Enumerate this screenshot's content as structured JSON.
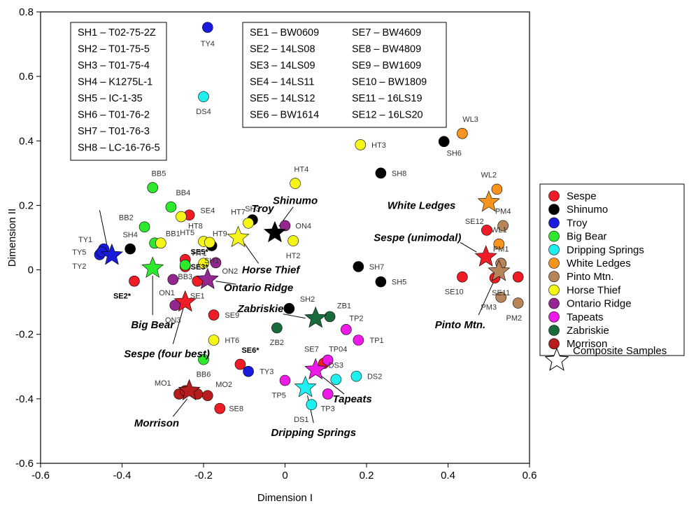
{
  "chart_data": {
    "type": "scatter",
    "xlabel": "Dimension I",
    "ylabel": "Dimension II",
    "xlim": [
      -0.6,
      0.6
    ],
    "ylim": [
      -0.6,
      0.8
    ],
    "xticks": [
      -0.6,
      -0.4,
      -0.2,
      0,
      0.2,
      0.4,
      0.6
    ],
    "yticks": [
      -0.6,
      -0.4,
      -0.2,
      0,
      0.2,
      0.4,
      0.6,
      0.8
    ],
    "xtick_labels": [
      "-0.6",
      "-0.4",
      "-0.2",
      "0",
      "0.2",
      "0.4",
      "0.6"
    ],
    "ytick_labels": [
      "-0.6",
      "-0.4",
      "-0.2",
      "0",
      "0.2",
      "0.4",
      "0.6",
      "0.8"
    ],
    "grid": false,
    "legend_position": "right",
    "series": [
      {
        "name": "Sespe",
        "color": "#ee1c24",
        "points": [
          {
            "label": "SE1",
            "x": -0.215,
            "y": -0.035,
            "lx": 0.0,
            "ly": -0.045
          },
          {
            "label": "SE2*",
            "x": -0.37,
            "y": -0.035,
            "lx": -0.03,
            "ly": -0.045,
            "bold": true
          },
          {
            "label": "SE3*",
            "x": -0.245,
            "y": 0.01,
            "lx": 0.035,
            "ly": 0.0,
            "bold": true
          },
          {
            "label": "SE4",
            "x": -0.235,
            "y": 0.17,
            "lx": 0.045,
            "ly": 0.015
          },
          {
            "label": "SE5*",
            "x": -0.245,
            "y": 0.032,
            "lx": 0.035,
            "ly": 0.025,
            "bold": true
          },
          {
            "label": "SE6*",
            "x": -0.11,
            "y": -0.293,
            "lx": 0.025,
            "ly": 0.045,
            "bold": true
          },
          {
            "label": "SE7",
            "x": 0.095,
            "y": -0.29,
            "lx": -0.03,
            "ly": 0.045
          },
          {
            "label": "SE8",
            "x": -0.16,
            "y": -0.43,
            "lx": 0.04,
            "ly": 0.0
          },
          {
            "label": "SE9",
            "x": -0.175,
            "y": -0.14,
            "lx": 0.045,
            "ly": 0.0
          },
          {
            "label": "SE10",
            "x": 0.435,
            "y": -0.022,
            "lx": -0.02,
            "ly": -0.045
          },
          {
            "label": "SE11",
            "x": 0.515,
            "y": -0.025,
            "lx": 0.015,
            "ly": -0.045
          },
          {
            "label": "SE12",
            "x": 0.495,
            "y": 0.123,
            "lx": -0.03,
            "ly": 0.028
          },
          {
            "label": "",
            "x": 0.572,
            "y": -0.022,
            "lx": 0,
            "ly": 0
          }
        ]
      },
      {
        "name": "Shinumo",
        "color": "#000000",
        "points": [
          {
            "label": "SH1",
            "x": -0.18,
            "y": 0.075,
            "lx": 0.0,
            "ly": -0.045
          },
          {
            "label": "SH2",
            "x": 0.01,
            "y": -0.12,
            "lx": 0.045,
            "ly": 0.03
          },
          {
            "label": "SH3",
            "x": -0.08,
            "y": 0.155,
            "lx": 0.0,
            "ly": 0.035
          },
          {
            "label": "SH4",
            "x": -0.38,
            "y": 0.065,
            "lx": 0.0,
            "ly": 0.045
          },
          {
            "label": "SH5",
            "x": 0.235,
            "y": -0.037,
            "lx": 0.045,
            "ly": 0.0
          },
          {
            "label": "SH6",
            "x": 0.39,
            "y": 0.398,
            "lx": 0.025,
            "ly": -0.035
          },
          {
            "label": "SH7",
            "x": 0.18,
            "y": 0.01,
            "lx": 0.045,
            "ly": 0.0
          },
          {
            "label": "SH8",
            "x": 0.235,
            "y": 0.3,
            "lx": 0.045,
            "ly": 0.0
          }
        ]
      },
      {
        "name": "Troy",
        "color": "#1a1adc",
        "points": [
          {
            "label": "TY1",
            "x": -0.445,
            "y": 0.065,
            "lx": -0.045,
            "ly": 0.03
          },
          {
            "label": "TY2",
            "x": -0.455,
            "y": 0.047,
            "lx": -0.05,
            "ly": -0.035
          },
          {
            "label": "TY3",
            "x": -0.09,
            "y": -0.315,
            "lx": 0.045,
            "ly": 0.0
          },
          {
            "label": "TY4",
            "x": -0.19,
            "y": 0.752,
            "lx": 0.0,
            "ly": -0.05
          },
          {
            "label": "TY5",
            "x": -0.45,
            "y": 0.055,
            "lx": -0.055,
            "ly": 0.0
          }
        ]
      },
      {
        "name": "Big Bear",
        "color": "#2ee82e",
        "points": [
          {
            "label": "BB1",
            "x": -0.32,
            "y": 0.083,
            "lx": 0.045,
            "ly": 0.03
          },
          {
            "label": "BB2",
            "x": -0.345,
            "y": 0.133,
            "lx": -0.045,
            "ly": 0.03
          },
          {
            "label": "BB3",
            "x": -0.245,
            "y": 0.015,
            "lx": 0.0,
            "ly": -0.035
          },
          {
            "label": "BB4",
            "x": -0.28,
            "y": 0.195,
            "lx": 0.03,
            "ly": 0.045
          },
          {
            "label": "BB5",
            "x": -0.325,
            "y": 0.255,
            "lx": 0.015,
            "ly": 0.045
          },
          {
            "label": "BB6",
            "x": -0.2,
            "y": -0.278,
            "lx": 0.0,
            "ly": -0.045
          }
        ]
      },
      {
        "name": "Dripping Springs",
        "color": "#1ef0f0",
        "points": [
          {
            "label": "DS1",
            "x": 0.065,
            "y": -0.418,
            "lx": -0.025,
            "ly": -0.045
          },
          {
            "label": "DS2",
            "x": 0.175,
            "y": -0.33,
            "lx": 0.045,
            "ly": 0.0
          },
          {
            "label": "DS3",
            "x": 0.125,
            "y": -0.34,
            "lx": 0.0,
            "ly": 0.045
          },
          {
            "label": "DS4",
            "x": -0.2,
            "y": 0.537,
            "lx": 0.0,
            "ly": -0.045
          }
        ]
      },
      {
        "name": "White Ledges",
        "color": "#f7941d",
        "points": [
          {
            "label": "WL1",
            "x": 0.525,
            "y": 0.08,
            "lx": 0.0,
            "ly": 0.045
          },
          {
            "label": "WL2",
            "x": 0.52,
            "y": 0.25,
            "lx": -0.02,
            "ly": 0.045
          },
          {
            "label": "WL3",
            "x": 0.435,
            "y": 0.423,
            "lx": 0.02,
            "ly": 0.045
          },
          {
            "label": "",
            "x": 0.53,
            "y": 0.02,
            "lx": 0,
            "ly": 0
          }
        ]
      },
      {
        "name": "Pinto Mtn.",
        "color": "#b8855a",
        "points": [
          {
            "label": "PM1",
            "x": 0.53,
            "y": 0.02,
            "lx": 0.0,
            "ly": 0.045
          },
          {
            "label": "PM2",
            "x": 0.572,
            "y": -0.103,
            "lx": -0.01,
            "ly": -0.045
          },
          {
            "label": "PM3",
            "x": 0.53,
            "y": -0.085,
            "lx": -0.03,
            "ly": -0.03
          },
          {
            "label": "PM4",
            "x": 0.535,
            "y": 0.137,
            "lx": 0.0,
            "ly": 0.045
          }
        ]
      },
      {
        "name": "Horse Thief",
        "color": "#f5f51a",
        "points": [
          {
            "label": "HT1",
            "x": -0.2,
            "y": 0.02,
            "lx": -0.01,
            "ly": 0.032
          },
          {
            "label": "HT2",
            "x": 0.02,
            "y": 0.09,
            "lx": 0.0,
            "ly": -0.045
          },
          {
            "label": "HT3",
            "x": 0.185,
            "y": 0.388,
            "lx": 0.045,
            "ly": 0.0
          },
          {
            "label": "HT4",
            "x": 0.025,
            "y": 0.268,
            "lx": 0.015,
            "ly": 0.045
          },
          {
            "label": "HT5",
            "x": -0.2,
            "y": 0.088,
            "lx": -0.04,
            "ly": 0.028
          },
          {
            "label": "HT6",
            "x": -0.175,
            "y": -0.218,
            "lx": 0.045,
            "ly": 0.0
          },
          {
            "label": "HT7",
            "x": -0.09,
            "y": 0.145,
            "lx": -0.025,
            "ly": 0.035
          },
          {
            "label": "HT8",
            "x": -0.255,
            "y": 0.165,
            "lx": 0.035,
            "ly": -0.028
          },
          {
            "label": "HT9",
            "x": -0.185,
            "y": 0.085,
            "lx": 0.025,
            "ly": 0.028
          },
          {
            "label": "",
            "x": -0.305,
            "y": 0.083,
            "lx": 0,
            "ly": 0
          }
        ]
      },
      {
        "name": "Ontario Ridge",
        "color": "#93278f",
        "points": [
          {
            "label": "ON1",
            "x": -0.275,
            "y": -0.03,
            "lx": -0.015,
            "ly": -0.04
          },
          {
            "label": "ON2",
            "x": -0.17,
            "y": 0.022,
            "lx": 0.035,
            "ly": -0.025
          },
          {
            "label": "ON3",
            "x": -0.27,
            "y": -0.11,
            "lx": -0.005,
            "ly": -0.045
          },
          {
            "label": "ON4",
            "x": 0.0,
            "y": 0.137,
            "lx": 0.045,
            "ly": 0.0
          }
        ]
      },
      {
        "name": "Tapeats",
        "color": "#ee1ae8",
        "points": [
          {
            "label": "TP04",
            "x": 0.105,
            "y": -0.28,
            "lx": 0.025,
            "ly": 0.035
          },
          {
            "label": "TP1",
            "x": 0.18,
            "y": -0.218,
            "lx": 0.045,
            "ly": 0.0
          },
          {
            "label": "TP2",
            "x": 0.15,
            "y": -0.185,
            "lx": 0.025,
            "ly": 0.035
          },
          {
            "label": "TP3",
            "x": 0.105,
            "y": -0.385,
            "lx": 0.0,
            "ly": -0.045
          },
          {
            "label": "TP5",
            "x": 0.0,
            "y": -0.343,
            "lx": -0.015,
            "ly": -0.045
          }
        ]
      },
      {
        "name": "Zabriskie",
        "color": "#1a6b3c",
        "points": [
          {
            "label": "ZB1",
            "x": 0.11,
            "y": -0.145,
            "lx": 0.035,
            "ly": 0.035
          },
          {
            "label": "ZB2",
            "x": -0.02,
            "y": -0.18,
            "lx": 0.0,
            "ly": -0.045
          }
        ]
      },
      {
        "name": "Morrison",
        "color": "#b81d1d",
        "points": [
          {
            "label": "MO1",
            "x": -0.26,
            "y": -0.385,
            "lx": -0.04,
            "ly": 0.035
          },
          {
            "label": "MO2",
            "x": -0.19,
            "y": -0.39,
            "lx": 0.04,
            "ly": 0.035
          },
          {
            "label": "",
            "x": -0.215,
            "y": -0.385,
            "lx": 0,
            "ly": 0
          },
          {
            "label": "",
            "x": -0.245,
            "y": -0.375,
            "lx": 0,
            "ly": 0
          }
        ]
      }
    ],
    "composites": [
      {
        "name": "Troy",
        "color": "#1a1adc",
        "x": -0.425,
        "y": 0.045,
        "lx": -0.055,
        "ly": 0.19,
        "ax1": -0.435,
        "ay1": 0.063,
        "ax2": -0.455,
        "ay2": 0.185
      },
      {
        "name": "Big Bear",
        "color": "#2ee82e",
        "x": -0.325,
        "y": 0.005,
        "lx": -0.325,
        "ly": -0.17,
        "ax1": -0.325,
        "ay1": -0.018,
        "ax2": -0.325,
        "ay2": -0.14
      },
      {
        "name": "Sespe (four best)",
        "color": "#ee1c24",
        "x": -0.245,
        "y": -0.1,
        "lx": -0.29,
        "ly": -0.26,
        "ax1": -0.25,
        "ay1": -0.12,
        "ax2": -0.275,
        "ay2": -0.23
      },
      {
        "name": "Ontario Ridge",
        "color": "#93278f",
        "x": -0.19,
        "y": -0.03,
        "lx": -0.065,
        "ly": -0.055,
        "ax1": -0.17,
        "ay1": -0.035,
        "ax2": -0.12,
        "ay2": -0.045
      },
      {
        "name": "Horse Thief",
        "color": "#f5f51a",
        "x": -0.115,
        "y": 0.1,
        "lx": -0.035,
        "ly": 0.0,
        "ax1": -0.1,
        "ay1": 0.082,
        "ax2": -0.065,
        "ay2": 0.02
      },
      {
        "name": "Shinumo",
        "color": "#000000",
        "x": -0.025,
        "y": 0.115,
        "lx": 0.025,
        "ly": 0.215,
        "ax1": -0.015,
        "ay1": 0.135,
        "ax2": 0.02,
        "ay2": 0.195
      },
      {
        "name": "Zabriskie",
        "color": "#1a6b3c",
        "x": 0.075,
        "y": -0.15,
        "lx": -0.06,
        "ly": -0.12,
        "ax1": 0.05,
        "ay1": -0.15,
        "ax2": -0.005,
        "ay2": -0.137
      },
      {
        "name": "Tapeats",
        "color": "#ee1ae8",
        "x": 0.075,
        "y": -0.31,
        "lx": 0.165,
        "ly": -0.4,
        "ax1": 0.09,
        "ay1": -0.33,
        "ax2": 0.145,
        "ay2": -0.385
      },
      {
        "name": "Dripping Springs",
        "color": "#1ef0f0",
        "x": 0.05,
        "y": -0.365,
        "lx": 0.07,
        "ly": -0.505,
        "ax1": 0.055,
        "ay1": -0.39,
        "ax2": 0.07,
        "ay2": -0.475
      },
      {
        "name": "Morrison",
        "color": "#b81d1d",
        "x": -0.235,
        "y": -0.375,
        "lx": -0.315,
        "ly": -0.475,
        "ax1": -0.24,
        "ay1": -0.4,
        "ax2": -0.275,
        "ay2": -0.455
      },
      {
        "name": "White Ledges",
        "color": "#f7941d",
        "x": 0.5,
        "y": 0.21,
        "lx": 0.335,
        "ly": 0.2,
        "ax1": 0.48,
        "ay1": 0.21,
        "ax2": 0.48,
        "ay2": 0.21
      },
      {
        "name": "Sespe (unimodal)",
        "color": "#ee1c24",
        "x": 0.493,
        "y": 0.04,
        "lx": 0.325,
        "ly": 0.1,
        "ax1": 0.47,
        "ay1": 0.055,
        "ax2": 0.43,
        "ay2": 0.085
      },
      {
        "name": "Pinto Mtn.",
        "color": "#b8855a",
        "x": 0.525,
        "y": -0.005,
        "lx": 0.43,
        "ly": -0.17,
        "ax1": 0.515,
        "ay1": -0.028,
        "ax2": 0.475,
        "ay2": -0.14
      }
    ],
    "code_box_sh": [
      "SH1 – T02-75-2Z",
      "SH2 – T01-75-5",
      "SH3 – T01-75-4",
      "SH4 – K1275L-1",
      "SH5 – IC-1-35",
      "SH6 – T01-76-2",
      "SH7 – T01-76-3",
      "SH8 – LC-16-76-5"
    ],
    "code_box_se_left": [
      "SE1 – BW0609",
      "SE2 – 14LS08",
      "SE3 – 14LS09",
      "SE4 – 14LS11",
      "SE5 – 14LS12",
      "SE6 – BW1614"
    ],
    "code_box_se_right": [
      "SE7 – BW4609",
      "SE8 – BW4809",
      "SE9 – BW1609",
      "SE10 – BW1809",
      "SE11 – 16LS19",
      "SE12 – 16LS20"
    ],
    "legend_composite_label": "Composite Samples"
  }
}
